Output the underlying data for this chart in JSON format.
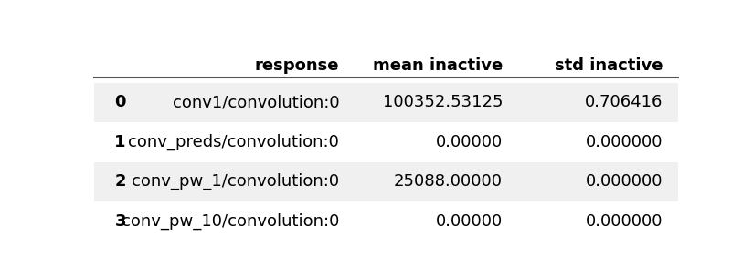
{
  "columns": [
    "response",
    "mean inactive",
    "std inactive"
  ],
  "index": [
    0,
    1,
    2,
    3
  ],
  "rows": [
    [
      "conv1/convolution:0",
      "100352.53125",
      "0.706416"
    ],
    [
      "conv_preds/convolution:0",
      "0.00000",
      "0.000000"
    ],
    [
      "conv_pw_1/convolution:0",
      "25088.00000",
      "0.000000"
    ],
    [
      "conv_pw_10/convolution:0",
      "0.00000",
      "0.000000"
    ]
  ],
  "row_bg_even": "#f0f0f0",
  "row_bg_odd": "#ffffff",
  "header_line_color": "#555555",
  "text_color": "#000000",
  "font_size": 13,
  "figsize": [
    8.24,
    3.05
  ],
  "dpi": 100
}
